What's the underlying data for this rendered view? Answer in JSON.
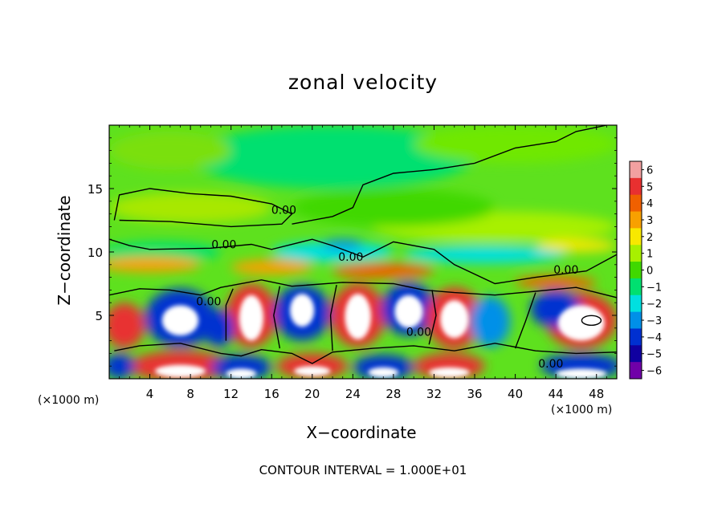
{
  "chart_data": {
    "type": "heatmap",
    "title": "zonal velocity",
    "xlabel": "X−coordinate",
    "ylabel": "Z−coordinate",
    "x_unit": "(×1000 m)",
    "z_unit": "(×1000 m)",
    "xlim": [
      0,
      50
    ],
    "ylim": [
      0,
      20
    ],
    "x_ticks": [
      4,
      8,
      12,
      16,
      20,
      24,
      28,
      32,
      36,
      40,
      44,
      48
    ],
    "y_ticks": [
      5,
      10,
      15
    ],
    "colorbar": {
      "range": [
        -6,
        6
      ],
      "ticks": [
        6,
        5,
        4,
        3,
        2,
        1,
        0,
        -1,
        -2,
        -3,
        -4,
        -5,
        -6
      ],
      "tick_labels": [
        "6",
        "5",
        "4",
        "3",
        "2",
        "1",
        "0",
        "−1",
        "−2",
        "−3",
        "−4",
        "−5",
        "−6"
      ],
      "colors": [
        "#f2a0a0",
        "#e83030",
        "#f06000",
        "#f8a000",
        "#f8e800",
        "#a8f000",
        "#40d800",
        "#00e070",
        "#00e0e0",
        "#0090e8",
        "#0030d0",
        "#1000a0",
        "#7000a8"
      ]
    },
    "contour_labels": [
      {
        "text": "0.00",
        "x": 11.3,
        "y": 10.3
      },
      {
        "text": "0.00",
        "x": 9.8,
        "y": 5.8
      },
      {
        "text": "0.00",
        "x": 17.2,
        "y": 13.0
      },
      {
        "text": "0.00",
        "x": 23.8,
        "y": 9.3
      },
      {
        "text": "0.00",
        "x": 30.5,
        "y": 3.4
      },
      {
        "text": "0.00",
        "x": 45.0,
        "y": 8.3
      },
      {
        "text": "0.00",
        "x": 43.5,
        "y": 0.9
      }
    ],
    "contour_interval_text": "CONTOUR INTERVAL = 1.000E+01"
  }
}
